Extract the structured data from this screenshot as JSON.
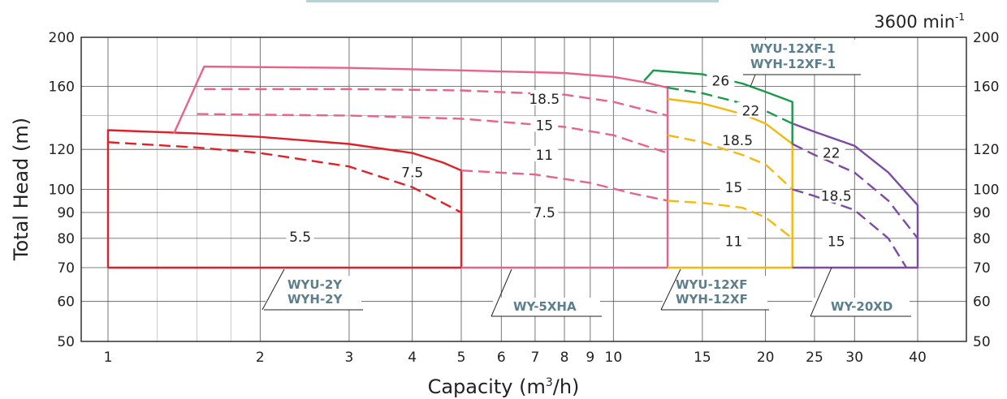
{
  "chart_data": {
    "type": "line",
    "title": "",
    "speed_label": "3600 min",
    "speed_sup": "-1",
    "xlabel_pre": "Capacity (m",
    "xlabel_sup": "3",
    "xlabel_post": "/h)",
    "ylabel": "Total Head (m)",
    "x_scale": "log",
    "y_scale": "log",
    "xlim": [
      1,
      40
    ],
    "ylim": [
      50,
      200
    ],
    "grid": true,
    "x_ticks": [
      {
        "v": 1,
        "label": "1"
      },
      {
        "v": 2,
        "label": "2"
      },
      {
        "v": 3,
        "label": "3"
      },
      {
        "v": 4,
        "label": "4"
      },
      {
        "v": 5,
        "label": "5"
      },
      {
        "v": 6,
        "label": "6"
      },
      {
        "v": 7,
        "label": "7"
      },
      {
        "v": 8,
        "label": "8"
      },
      {
        "v": 9,
        "label": "9"
      },
      {
        "v": 10,
        "label": "10"
      },
      {
        "v": 15,
        "label": "15"
      },
      {
        "v": 20,
        "label": "20"
      },
      {
        "v": 25,
        "label": "25"
      },
      {
        "v": 30,
        "label": "30"
      },
      {
        "v": 40,
        "label": "40"
      }
    ],
    "y_ticks": [
      {
        "v": 50,
        "label": "50"
      },
      {
        "v": 60,
        "label": "60"
      },
      {
        "v": 70,
        "label": "70"
      },
      {
        "v": 80,
        "label": "80"
      },
      {
        "v": 90,
        "label": "90"
      },
      {
        "v": 100,
        "label": "100"
      },
      {
        "v": 120,
        "label": "120"
      },
      {
        "v": 160,
        "label": "160"
      },
      {
        "v": 200,
        "label": "200"
      }
    ],
    "series": [
      {
        "model": "WYU-2Y / WYH-2Y",
        "kw": "5.5",
        "color": "#e02028",
        "style": "solid",
        "points": [
          [
            1,
            70
          ],
          [
            5,
            70
          ]
        ]
      },
      {
        "model": "WYU-2Y / WYH-2Y",
        "kw": "",
        "color": "#e02028",
        "style": "solid",
        "points": [
          [
            1,
            70
          ],
          [
            1,
            131
          ],
          [
            1.5,
            129
          ],
          [
            2,
            127
          ],
          [
            3,
            123
          ],
          [
            4,
            118
          ],
          [
            4.6,
            113
          ],
          [
            5,
            109
          ],
          [
            5,
            70
          ]
        ]
      },
      {
        "model": "WYU-2Y / WYH-2Y",
        "kw": "7.5",
        "color": "#e02028",
        "style": "dashed",
        "points": [
          [
            1,
            124
          ],
          [
            1.5,
            121
          ],
          [
            2,
            118
          ],
          [
            3,
            111
          ],
          [
            4,
            101
          ],
          [
            4.6,
            94
          ],
          [
            5,
            90
          ]
        ]
      },
      {
        "model": "WY-5XHA",
        "kw": "18.5",
        "color": "#e8638a",
        "style": "solid",
        "points": [
          [
            1.35,
            129
          ],
          [
            1.55,
            175
          ],
          [
            3,
            174
          ],
          [
            5,
            172
          ],
          [
            8,
            170
          ],
          [
            10,
            167
          ],
          [
            11.5,
            163
          ],
          [
            12.8,
            159
          ],
          [
            12.8,
            70
          ],
          [
            5,
            70
          ]
        ]
      },
      {
        "model": "WY-5XHA",
        "kw": "15",
        "color": "#e8638a",
        "style": "dashed",
        "points": [
          [
            1.55,
            158
          ],
          [
            3,
            158
          ],
          [
            5,
            157
          ],
          [
            8,
            154
          ],
          [
            10,
            149
          ],
          [
            12.8,
            140
          ]
        ]
      },
      {
        "model": "WY-5XHA",
        "kw": "11",
        "color": "#e8638a",
        "style": "dashed",
        "points": [
          [
            1.5,
            141
          ],
          [
            3,
            140
          ],
          [
            5,
            138
          ],
          [
            8,
            133
          ],
          [
            10,
            128
          ],
          [
            12.8,
            118
          ]
        ]
      },
      {
        "model": "WY-5XHA",
        "kw": "7.5",
        "color": "#e8638a",
        "style": "dashed",
        "points": [
          [
            5,
            109
          ],
          [
            7,
            107
          ],
          [
            9,
            103
          ],
          [
            11,
            98
          ],
          [
            12.8,
            95
          ]
        ]
      },
      {
        "model": "WYU-12XF / WYH-12XF",
        "kw": "22",
        "color": "#f5b80f",
        "style": "solid",
        "points": [
          [
            12.8,
            151
          ],
          [
            15,
            148
          ],
          [
            18,
            141
          ],
          [
            20,
            135
          ],
          [
            22.6,
            123
          ],
          [
            22.6,
            70
          ],
          [
            12.8,
            70
          ]
        ]
      },
      {
        "model": "WYU-12XF / WYH-12XF",
        "kw": "18.5",
        "color": "#f5b80f",
        "style": "dashed",
        "points": [
          [
            12.8,
            128
          ],
          [
            15,
            124
          ],
          [
            18,
            117
          ],
          [
            20,
            112
          ],
          [
            22.6,
            100
          ]
        ]
      },
      {
        "model": "WYU-12XF / WYH-12XF",
        "kw": "15",
        "color": "#f5b80f",
        "style": "dashed",
        "points": [
          [
            12.8,
            95
          ],
          [
            15,
            94
          ],
          [
            18,
            92
          ],
          [
            20,
            88
          ],
          [
            22.6,
            80
          ]
        ]
      },
      {
        "model": "WYU-12XF-1 / WYH-12XF-1",
        "kw": "26",
        "color": "#189a4a",
        "style": "solid",
        "points": [
          [
            11.5,
            164
          ],
          [
            12,
            172
          ],
          [
            15,
            169
          ],
          [
            18,
            162
          ],
          [
            20,
            156
          ],
          [
            22.6,
            149
          ],
          [
            22.6,
            123
          ]
        ]
      },
      {
        "model": "WYU-12XF-1 / WYH-12XF-1",
        "kw": "22",
        "color": "#189a4a",
        "style": "dashed",
        "points": [
          [
            12.8,
            159
          ],
          [
            15,
            155
          ],
          [
            18,
            148
          ],
          [
            20,
            143
          ],
          [
            22.6,
            135
          ]
        ]
      },
      {
        "model": "WY-20XD",
        "kw": "22",
        "color": "#7d4aa6",
        "style": "solid",
        "points": [
          [
            22.6,
            135
          ],
          [
            25,
            130
          ],
          [
            30,
            122
          ],
          [
            35,
            108
          ],
          [
            40,
            93
          ],
          [
            40,
            70
          ],
          [
            22.6,
            70
          ]
        ]
      },
      {
        "model": "WY-20XD",
        "kw": "18.5",
        "color": "#7d4aa6",
        "style": "dashed",
        "points": [
          [
            22.6,
            123
          ],
          [
            25,
            117
          ],
          [
            30,
            108
          ],
          [
            35,
            95
          ],
          [
            40,
            80
          ]
        ]
      },
      {
        "model": "WY-20XD",
        "kw": "15",
        "color": "#7d4aa6",
        "style": "dashed",
        "points": [
          [
            22.6,
            100
          ],
          [
            25,
            97
          ],
          [
            30,
            91
          ],
          [
            35,
            80
          ],
          [
            38,
            70
          ]
        ]
      }
    ],
    "kw_labels": [
      {
        "text": "5.5",
        "x": 2.4,
        "y": 80.5
      },
      {
        "text": "7.5",
        "x": 4.0,
        "y": 108
      },
      {
        "text": "18.5",
        "x": 7.3,
        "y": 151
      },
      {
        "text": "15",
        "x": 7.3,
        "y": 134
      },
      {
        "text": "11",
        "x": 7.3,
        "y": 117
      },
      {
        "text": "7.5",
        "x": 7.3,
        "y": 90
      },
      {
        "text": "26",
        "x": 16.3,
        "y": 164
      },
      {
        "text": "22",
        "x": 18.7,
        "y": 143
      },
      {
        "text": "18.5",
        "x": 17.6,
        "y": 125
      },
      {
        "text": "15",
        "x": 17.3,
        "y": 101
      },
      {
        "text": "11",
        "x": 17.3,
        "y": 79
      },
      {
        "text": "22",
        "x": 27.0,
        "y": 118
      },
      {
        "text": "18.5",
        "x": 27.6,
        "y": 97
      },
      {
        "text": "15",
        "x": 27.6,
        "y": 79
      }
    ],
    "model_labels": [
      {
        "lines": [
          "WYU-2Y",
          "WYH-2Y"
        ]
      },
      {
        "lines": [
          "WY-5XHA"
        ]
      },
      {
        "lines": [
          "WYU-12XF",
          "WYH-12XF"
        ]
      },
      {
        "lines": [
          "WY-20XD"
        ]
      },
      {
        "lines": [
          "WYU-12XF-1",
          "WYH-12XF-1"
        ]
      }
    ]
  }
}
